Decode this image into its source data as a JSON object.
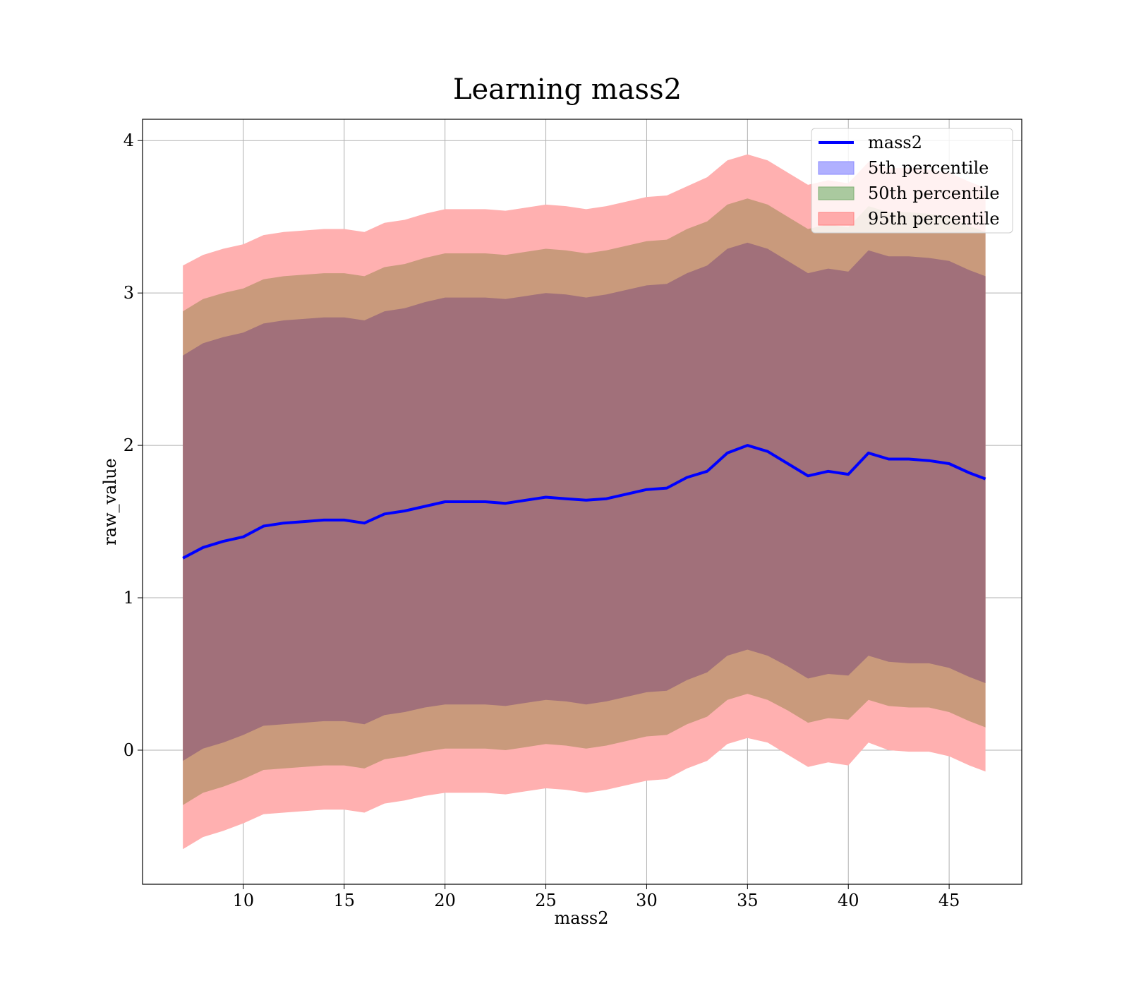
{
  "chart_data": {
    "type": "area",
    "title": "Learning mass2",
    "xlabel": "mass2",
    "ylabel": "raw_value",
    "xlim": [
      5.0,
      48.6
    ],
    "ylim": [
      -0.88,
      4.14
    ],
    "xticks": [
      10,
      15,
      20,
      25,
      30,
      35,
      40,
      45
    ],
    "yticks": [
      0,
      1,
      2,
      3,
      4
    ],
    "grid": true,
    "legend_position": "upper-right",
    "colors": {
      "line": "#0000ff",
      "band_5th": "#6666ff",
      "band_50th": "#5a9a4a",
      "band_95th": "#ff6b6b",
      "band_overlap": "#a0707a"
    },
    "x": [
      7.0,
      8.0,
      9.0,
      10.0,
      11.0,
      12.0,
      13.0,
      14.0,
      15.0,
      16.0,
      17.0,
      18.0,
      19.0,
      20.0,
      21.0,
      22.0,
      23.0,
      24.0,
      25.0,
      26.0,
      27.0,
      28.0,
      29.0,
      30.0,
      31.0,
      32.0,
      33.0,
      34.0,
      35.0,
      36.0,
      37.0,
      38.0,
      39.0,
      40.0,
      41.0,
      42.0,
      43.0,
      44.0,
      45.0,
      46.0,
      46.8
    ],
    "series": [
      {
        "name": "mass2",
        "kind": "line",
        "values": [
          1.26,
          1.33,
          1.37,
          1.4,
          1.47,
          1.49,
          1.5,
          1.51,
          1.51,
          1.49,
          1.55,
          1.57,
          1.6,
          1.63,
          1.63,
          1.63,
          1.62,
          1.64,
          1.66,
          1.65,
          1.64,
          1.65,
          1.68,
          1.71,
          1.72,
          1.79,
          1.83,
          1.95,
          2.0,
          1.96,
          1.88,
          1.8,
          1.83,
          1.81,
          1.95,
          1.91,
          1.91,
          1.9,
          1.88,
          1.82,
          1.78
        ]
      }
    ],
    "bands": [
      {
        "name": "95th percentile",
        "lower": [
          -0.65,
          -0.57,
          -0.53,
          -0.48,
          -0.42,
          -0.41,
          -0.4,
          -0.39,
          -0.39,
          -0.41,
          -0.35,
          -0.33,
          -0.3,
          -0.28,
          -0.28,
          -0.28,
          -0.29,
          -0.27,
          -0.25,
          -0.26,
          -0.28,
          -0.26,
          -0.23,
          -0.2,
          -0.19,
          -0.12,
          -0.07,
          0.04,
          0.08,
          0.05,
          -0.03,
          -0.11,
          -0.08,
          -0.1,
          0.05,
          0.0,
          -0.01,
          -0.01,
          -0.04,
          -0.1,
          -0.14
        ],
        "upper": [
          3.18,
          3.25,
          3.29,
          3.32,
          3.38,
          3.4,
          3.41,
          3.42,
          3.42,
          3.4,
          3.46,
          3.48,
          3.52,
          3.55,
          3.55,
          3.55,
          3.54,
          3.56,
          3.58,
          3.57,
          3.55,
          3.57,
          3.6,
          3.63,
          3.64,
          3.7,
          3.76,
          3.87,
          3.91,
          3.87,
          3.79,
          3.71,
          3.74,
          3.72,
          3.86,
          3.82,
          3.82,
          3.81,
          3.79,
          3.73,
          3.69
        ]
      },
      {
        "name": "50th percentile",
        "lower": [
          -0.36,
          -0.28,
          -0.24,
          -0.19,
          -0.13,
          -0.12,
          -0.11,
          -0.1,
          -0.1,
          -0.12,
          -0.06,
          -0.04,
          -0.01,
          0.01,
          0.01,
          0.01,
          0.0,
          0.02,
          0.04,
          0.03,
          0.01,
          0.03,
          0.06,
          0.09,
          0.1,
          0.17,
          0.22,
          0.33,
          0.37,
          0.33,
          0.26,
          0.18,
          0.21,
          0.2,
          0.33,
          0.29,
          0.28,
          0.28,
          0.25,
          0.19,
          0.15
        ],
        "upper": [
          2.88,
          2.96,
          3.0,
          3.03,
          3.09,
          3.11,
          3.12,
          3.13,
          3.13,
          3.11,
          3.17,
          3.19,
          3.23,
          3.26,
          3.26,
          3.26,
          3.25,
          3.27,
          3.29,
          3.28,
          3.26,
          3.28,
          3.31,
          3.34,
          3.35,
          3.42,
          3.47,
          3.58,
          3.62,
          3.58,
          3.5,
          3.42,
          3.45,
          3.43,
          3.57,
          3.53,
          3.53,
          3.52,
          3.5,
          3.44,
          3.4
        ]
      },
      {
        "name": "5th percentile",
        "lower": [
          -0.07,
          0.01,
          0.05,
          0.1,
          0.16,
          0.17,
          0.18,
          0.19,
          0.19,
          0.17,
          0.23,
          0.25,
          0.28,
          0.3,
          0.3,
          0.3,
          0.29,
          0.31,
          0.33,
          0.32,
          0.3,
          0.32,
          0.35,
          0.38,
          0.39,
          0.46,
          0.51,
          0.62,
          0.66,
          0.62,
          0.55,
          0.47,
          0.5,
          0.49,
          0.62,
          0.58,
          0.57,
          0.57,
          0.54,
          0.48,
          0.44
        ],
        "upper": [
          2.59,
          2.67,
          2.71,
          2.74,
          2.8,
          2.82,
          2.83,
          2.84,
          2.84,
          2.82,
          2.88,
          2.9,
          2.94,
          2.97,
          2.97,
          2.97,
          2.96,
          2.98,
          3.0,
          2.99,
          2.97,
          2.99,
          3.02,
          3.05,
          3.06,
          3.13,
          3.18,
          3.29,
          3.33,
          3.29,
          3.21,
          3.13,
          3.16,
          3.14,
          3.28,
          3.24,
          3.24,
          3.23,
          3.21,
          3.15,
          3.11
        ]
      }
    ],
    "legend": [
      {
        "label": "mass2",
        "kind": "line",
        "color": "#0000ff"
      },
      {
        "label": "5th percentile",
        "kind": "patch",
        "color": "#6666ff"
      },
      {
        "label": "50th percentile",
        "kind": "patch",
        "color": "#5a9a4a"
      },
      {
        "label": "95th percentile",
        "kind": "patch",
        "color": "#ff6b6b"
      }
    ]
  }
}
